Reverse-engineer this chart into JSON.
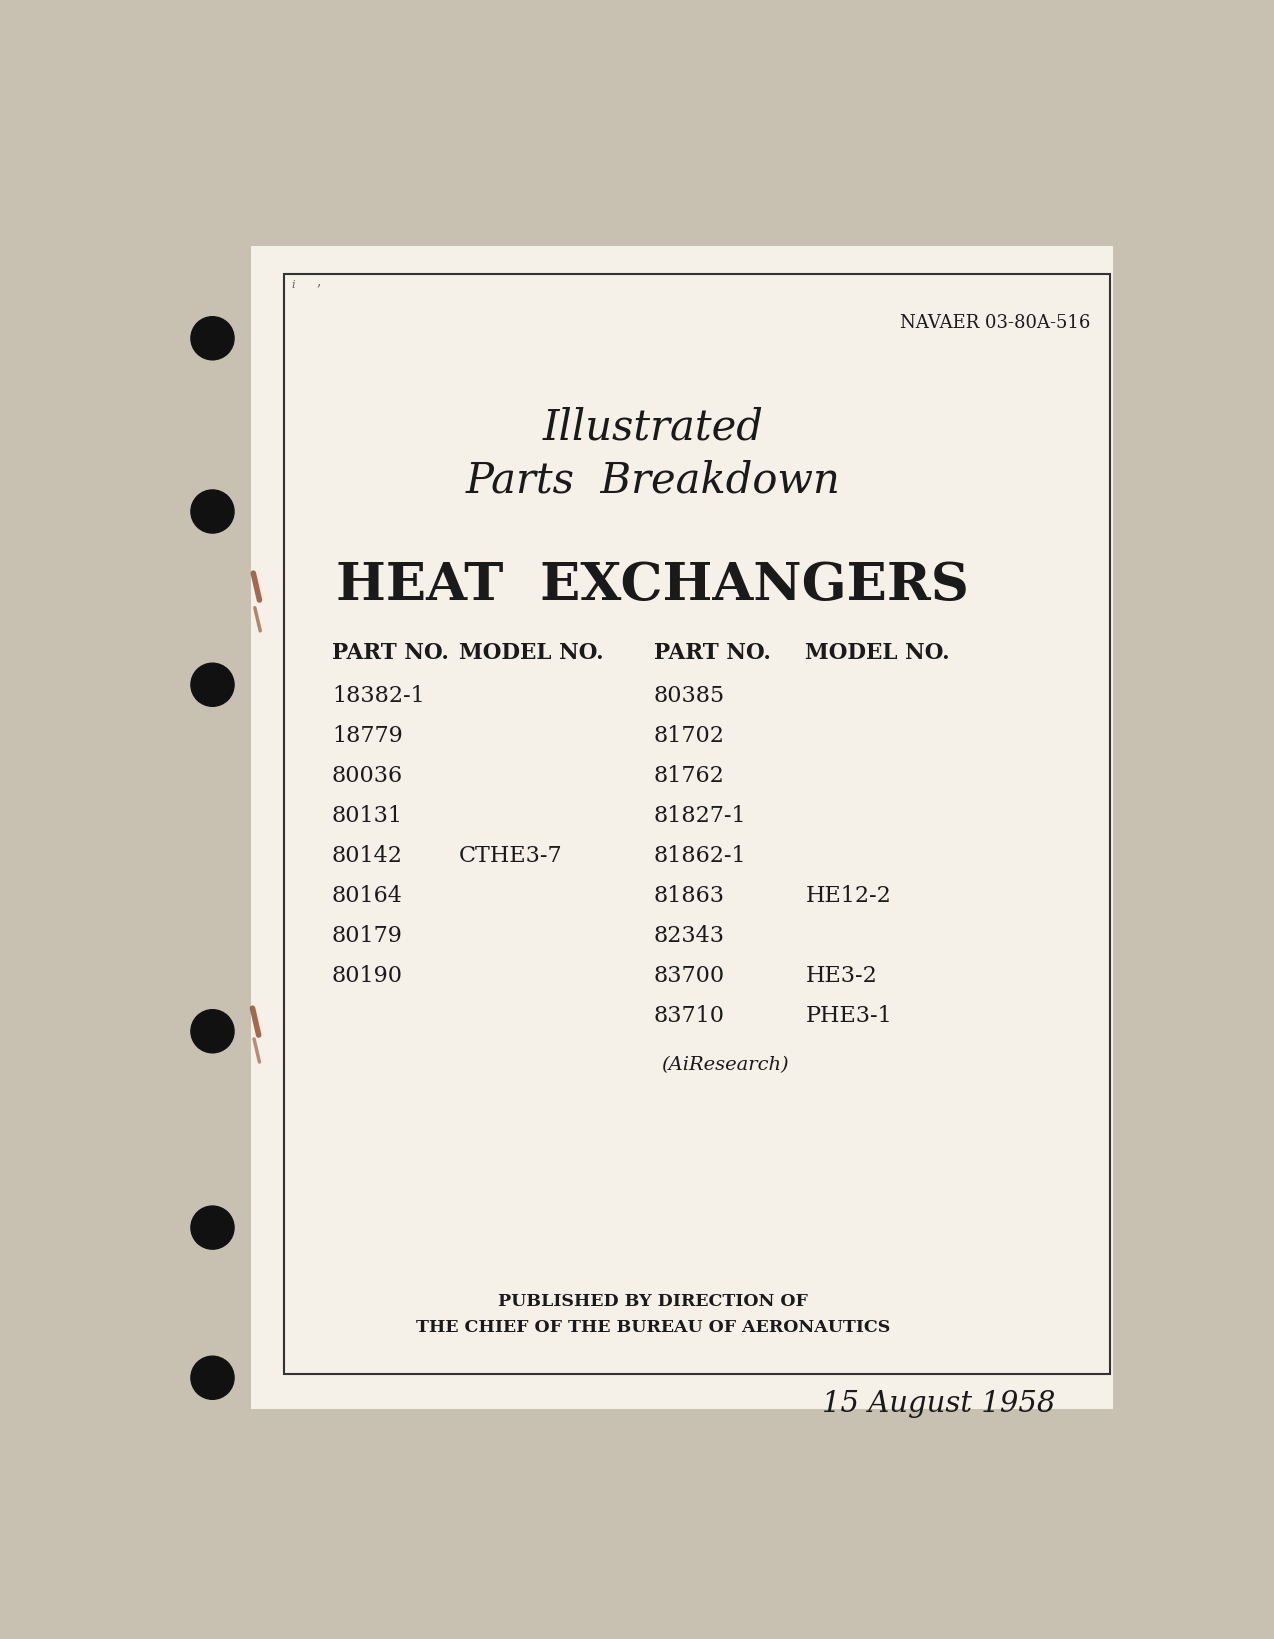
{
  "bg_color": "#c8c0b0",
  "page_bg": "#f5f0e8",
  "doc_number": "NAVAER 03-80A-516",
  "title_line1": "Illustrated",
  "title_line2": "Parts  Breakdown",
  "subject": "HEAT  EXCHANGERS",
  "col_headers": [
    "PART NO.",
    "MODEL NO.",
    "PART NO.",
    "MODEL NO."
  ],
  "left_parts": [
    "18382-1",
    "18779",
    "80036",
    "80131",
    "80142",
    "80164",
    "80179",
    "80190"
  ],
  "left_models": [
    "",
    "",
    "",
    "",
    "CTHE3-7",
    "",
    "",
    ""
  ],
  "right_parts": [
    "80385",
    "81702",
    "81762",
    "81827-1",
    "81862-1",
    "81863",
    "82343",
    "83700",
    "83710"
  ],
  "right_models": [
    "",
    "",
    "",
    "",
    "",
    "HE12-2",
    "",
    "HE3-2",
    "PHE3-1"
  ],
  "airesearch": "(AiResearch)",
  "published_line1": "PUBLISHED BY DIRECTION OF",
  "published_line2": "THE CHIEF OF THE BUREAU OF AERONAUTICS",
  "date": "15 August 1958",
  "text_color": "#1a1a1a",
  "hole_color": "#111111",
  "rust_color": "#8b3a1a"
}
